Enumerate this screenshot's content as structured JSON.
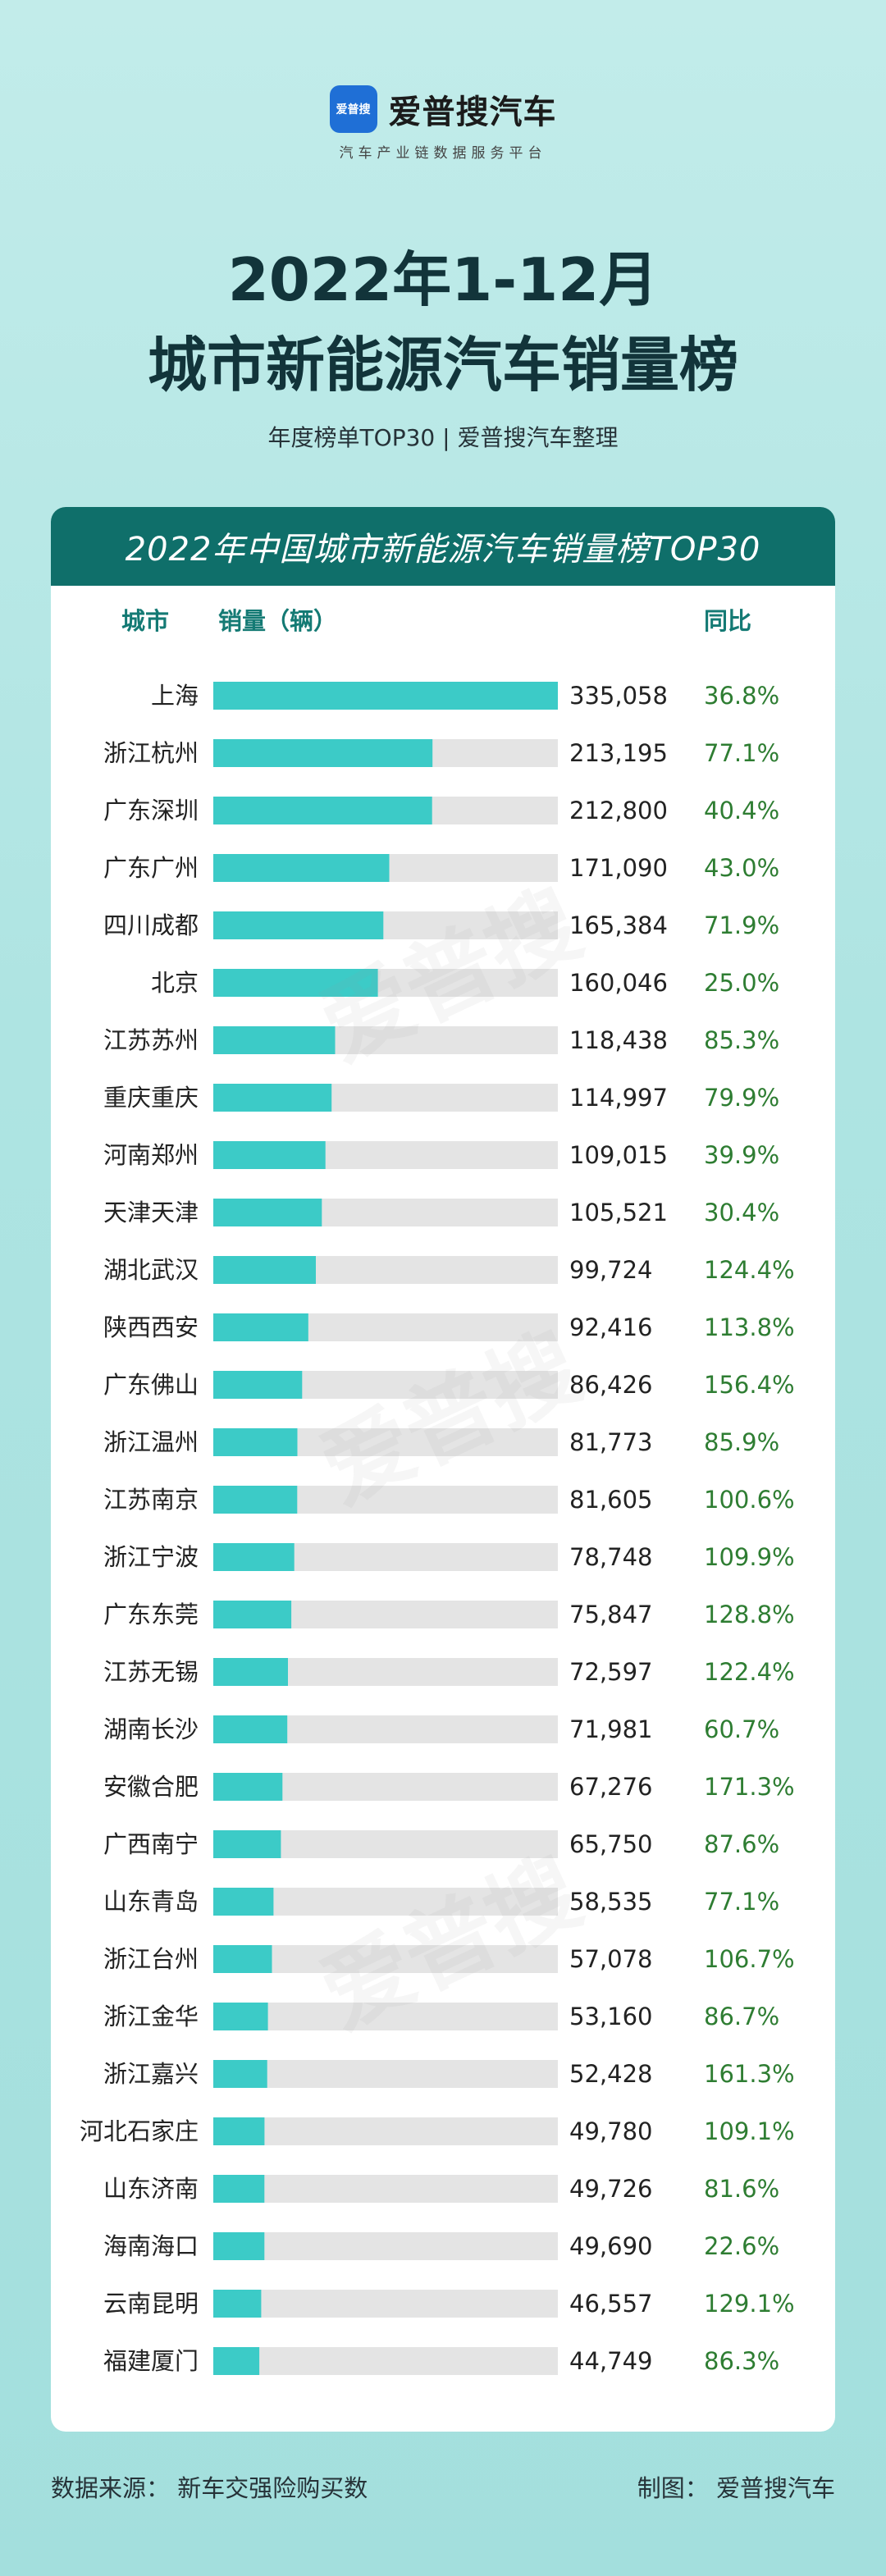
{
  "brand": {
    "logo_text": "爱普搜",
    "name": "爱普搜汽车",
    "tagline": "汽车产业链数据服务平台"
  },
  "title_line1": "2022年1-12月",
  "title_line2": "城市新能源汽车销量榜",
  "subtitle": "年度榜单TOP30 | 爱普搜汽车整理",
  "card_title": "2022年中国城市新能源汽车销量榜TOP30",
  "columns": {
    "city": "城市",
    "sales": "销量（辆）",
    "yoy": "同比"
  },
  "footer": {
    "source": "数据来源：  新车交强险购买数",
    "made_by": "制图：  爱普搜汽车"
  },
  "watermark": "爱普搜",
  "colors": {
    "bar": "#3ccbc7",
    "track": "#e4e4e4",
    "yoy": "#2e7d32",
    "header": "#0f6f6a"
  },
  "chart_data": {
    "type": "bar",
    "orientation": "horizontal",
    "title": "2022年中国城市新能源汽车销量榜TOP30",
    "categories": [
      "上海",
      "浙江杭州",
      "广东深圳",
      "广东广州",
      "四川成都",
      "北京",
      "江苏苏州",
      "重庆重庆",
      "河南郑州",
      "天津天津",
      "湖北武汉",
      "陕西西安",
      "广东佛山",
      "浙江温州",
      "江苏南京",
      "浙江宁波",
      "广东东莞",
      "江苏无锡",
      "湖南长沙",
      "安徽合肥",
      "广西南宁",
      "山东青岛",
      "浙江台州",
      "浙江金华",
      "浙江嘉兴",
      "河北石家庄",
      "山东济南",
      "海南海口",
      "云南昆明",
      "福建厦门"
    ],
    "values": [
      335058,
      213195,
      212800,
      171090,
      165384,
      160046,
      118438,
      114997,
      109015,
      105521,
      99724,
      92416,
      86426,
      81773,
      81605,
      78748,
      75847,
      72597,
      71981,
      67276,
      65750,
      58535,
      57078,
      53160,
      52428,
      49780,
      49726,
      49690,
      46557,
      44749
    ],
    "value_labels": [
      "335,058",
      "213,195",
      "212,800",
      "171,090",
      "165,384",
      "160,046",
      "118,438",
      "114,997",
      "109,015",
      "105,521",
      "99,724",
      "92,416",
      "86,426",
      "81,773",
      "81,605",
      "78,748",
      "75,847",
      "72,597",
      "71,981",
      "67,276",
      "65,750",
      "58,535",
      "57,078",
      "53,160",
      "52,428",
      "49,780",
      "49,726",
      "49,690",
      "46,557",
      "44,749"
    ],
    "yoy": [
      "36.8%",
      "77.1%",
      "40.4%",
      "43.0%",
      "71.9%",
      "25.0%",
      "85.3%",
      "79.9%",
      "39.9%",
      "30.4%",
      "124.4%",
      "113.8%",
      "156.4%",
      "85.9%",
      "100.6%",
      "109.9%",
      "128.8%",
      "122.4%",
      "60.7%",
      "171.3%",
      "87.6%",
      "77.1%",
      "106.7%",
      "86.7%",
      "161.3%",
      "109.1%",
      "81.6%",
      "22.6%",
      "129.1%",
      "86.3%"
    ],
    "xlim": [
      0,
      335058
    ],
    "grid": false
  }
}
